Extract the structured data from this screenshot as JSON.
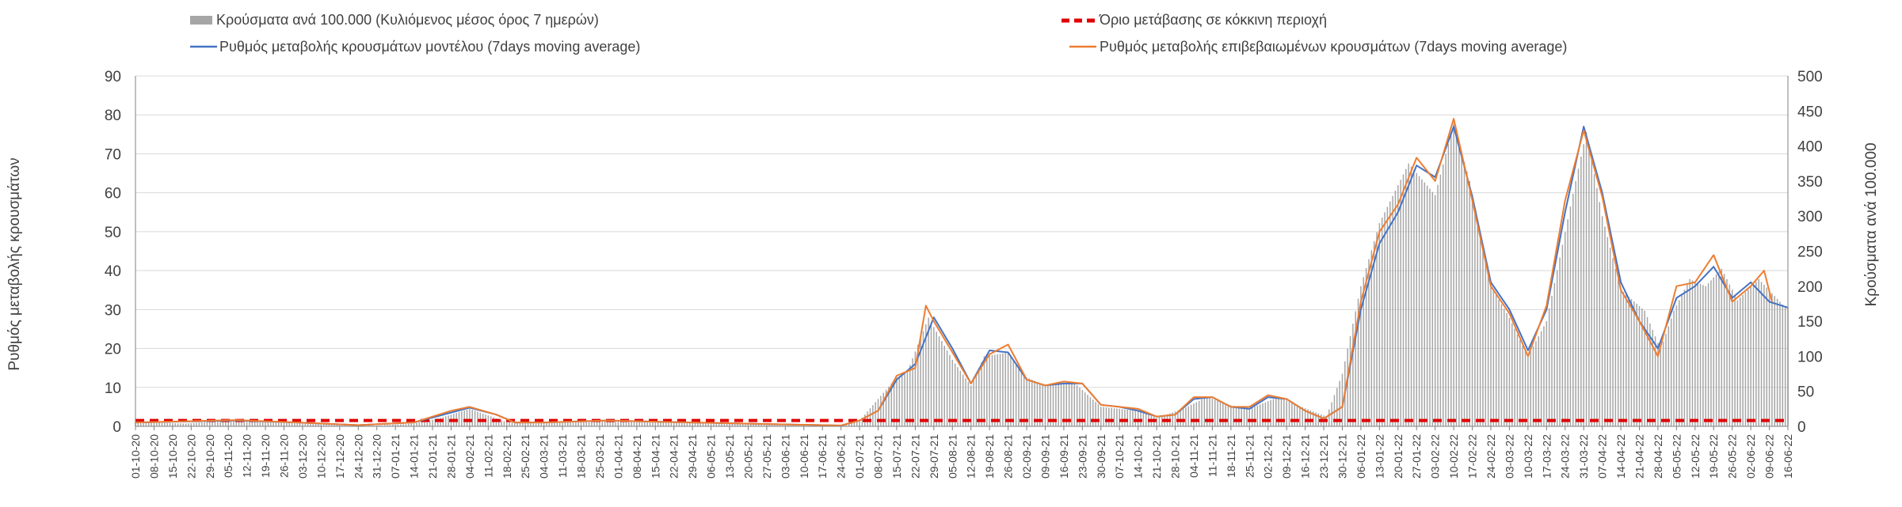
{
  "chart_data": {
    "type": "bar",
    "legend_placement": "top",
    "legend": [
      {
        "label": "Κρούσματα ανά 100.000 (Κυλιόμενος μέσος όρος 7 ημερών)",
        "kind": "bar",
        "color": "#a6a6a6"
      },
      {
        "label": "Όριο μετάβασης σε κόκκινη περιοχή",
        "kind": "dashed",
        "color": "#e00000"
      },
      {
        "label": "Ρυθμός μεταβολής κρουσμάτων μοντέλου (7days moving average)",
        "kind": "line",
        "color": "#4472c4"
      },
      {
        "label": "Ρυθμός μεταβολής επιβεβαιωμένων κρουσμάτων (7days moving average)",
        "kind": "line",
        "color": "#ed7d31"
      }
    ],
    "ylabel": "Ρυθμός μεταβολής κρουσμάτων",
    "y2label": "Κρούσματα ανά 100.000",
    "ylim": [
      0,
      90
    ],
    "y2lim": [
      0,
      500
    ],
    "yticks": [
      0,
      10,
      20,
      30,
      40,
      50,
      60,
      70,
      80,
      90
    ],
    "y2ticks": [
      0,
      50,
      100,
      150,
      200,
      250,
      300,
      350,
      400,
      450,
      500
    ],
    "grid": true,
    "x_start": "2020-10-01",
    "x_end": "2022-06-16",
    "x_ticks": [
      "01-10-20",
      "08-10-20",
      "15-10-20",
      "22-10-20",
      "29-10-20",
      "05-11-20",
      "12-11-20",
      "19-11-20",
      "26-11-20",
      "03-12-20",
      "10-12-20",
      "17-12-20",
      "24-12-20",
      "31-12-20",
      "07-01-21",
      "14-01-21",
      "21-01-21",
      "28-01-21",
      "04-02-21",
      "11-02-21",
      "18-02-21",
      "25-02-21",
      "04-03-21",
      "11-03-21",
      "18-03-21",
      "25-03-21",
      "01-04-21",
      "08-04-21",
      "15-04-21",
      "22-04-21",
      "29-04-21",
      "06-05-21",
      "13-05-21",
      "20-05-21",
      "27-05-21",
      "03-06-21",
      "10-06-21",
      "17-06-21",
      "24-06-21",
      "01-07-21",
      "08-07-21",
      "15-07-21",
      "22-07-21",
      "29-07-21",
      "05-08-21",
      "12-08-21",
      "19-08-21",
      "26-08-21",
      "02-09-21",
      "09-09-21",
      "16-09-21",
      "23-09-21",
      "30-09-21",
      "07-10-21",
      "14-10-21",
      "21-10-21",
      "28-10-21",
      "04-11-21",
      "11-11-21",
      "18-11-21",
      "25-11-21",
      "02-12-21",
      "09-12-21",
      "16-12-21",
      "23-12-21",
      "30-12-21",
      "06-01-22",
      "13-01-22",
      "20-01-22",
      "27-01-22",
      "03-02-22",
      "10-02-22",
      "17-02-22",
      "24-02-22",
      "03-03-22",
      "10-03-22",
      "17-03-22",
      "24-03-22",
      "31-03-22",
      "07-04-22",
      "14-04-22",
      "21-04-22",
      "28-04-22",
      "05-05-22",
      "12-05-22",
      "19-05-22",
      "26-05-22",
      "02-06-22",
      "09-06-22",
      "16-06-22"
    ],
    "threshold": {
      "value": 1.5
    },
    "bars": {
      "name": "Κρούσματα ανά 100.000 (Κυλιόμενος μέσος όρος 7 ημερών)",
      "points": [
        [
          "2020-10-01",
          6
        ],
        [
          "2020-10-20",
          4
        ],
        [
          "2020-11-05",
          8
        ],
        [
          "2020-11-19",
          8
        ],
        [
          "2020-12-10",
          3
        ],
        [
          "2020-12-31",
          1
        ],
        [
          "2021-01-14",
          4
        ],
        [
          "2021-01-24",
          12
        ],
        [
          "2021-02-04",
          25
        ],
        [
          "2021-02-18",
          6
        ],
        [
          "2021-03-01",
          4
        ],
        [
          "2021-03-25",
          8
        ],
        [
          "2021-04-15",
          6
        ],
        [
          "2021-04-26",
          6
        ],
        [
          "2021-05-13",
          4
        ],
        [
          "2021-06-10",
          2
        ],
        [
          "2021-06-24",
          1
        ],
        [
          "2021-07-01",
          8
        ],
        [
          "2021-07-15",
          70
        ],
        [
          "2021-07-19",
          78
        ],
        [
          "2021-07-27",
          155
        ],
        [
          "2021-08-05",
          95
        ],
        [
          "2021-08-12",
          58
        ],
        [
          "2021-08-17",
          100
        ],
        [
          "2021-08-26",
          105
        ],
        [
          "2021-09-02",
          70
        ],
        [
          "2021-09-09",
          58
        ],
        [
          "2021-09-20",
          62
        ],
        [
          "2021-09-30",
          28
        ],
        [
          "2021-10-14",
          22
        ],
        [
          "2021-10-21",
          12
        ],
        [
          "2021-10-31",
          25
        ],
        [
          "2021-11-09",
          42
        ],
        [
          "2021-11-18",
          30
        ],
        [
          "2021-11-25",
          25
        ],
        [
          "2021-12-06",
          42
        ],
        [
          "2021-12-13",
          30
        ],
        [
          "2021-12-24",
          14
        ],
        [
          "2021-12-30",
          75
        ],
        [
          "2022-01-06",
          200
        ],
        [
          "2022-01-13",
          290
        ],
        [
          "2022-01-24",
          375
        ],
        [
          "2022-02-03",
          330
        ],
        [
          "2022-02-10",
          432
        ],
        [
          "2022-02-16",
          350
        ],
        [
          "2022-02-24",
          200
        ],
        [
          "2022-03-03",
          155
        ],
        [
          "2022-03-10",
          100
        ],
        [
          "2022-03-17",
          150
        ],
        [
          "2022-03-28",
          350
        ],
        [
          "2022-04-01",
          420
        ],
        [
          "2022-04-07",
          300
        ],
        [
          "2022-04-14",
          195
        ],
        [
          "2022-04-23",
          165
        ],
        [
          "2022-04-29",
          110
        ],
        [
          "2022-05-04",
          165
        ],
        [
          "2022-05-10",
          210
        ],
        [
          "2022-05-16",
          200
        ],
        [
          "2022-05-22",
          225
        ],
        [
          "2022-05-28",
          180
        ],
        [
          "2022-06-05",
          210
        ],
        [
          "2022-06-10",
          190
        ],
        [
          "2022-06-15",
          170
        ]
      ]
    },
    "series": [
      {
        "name": "Ρυθμός μεταβολής κρουσμάτων μοντέλου (7days moving average)",
        "color": "#4472c4",
        "points": [
          [
            "2020-10-01",
            1
          ],
          [
            "2020-11-08",
            1.5
          ],
          [
            "2020-12-01",
            1
          ],
          [
            "2020-12-24",
            0.3
          ],
          [
            "2021-01-14",
            1
          ],
          [
            "2021-02-04",
            4.8
          ],
          [
            "2021-02-14",
            3
          ],
          [
            "2021-02-21",
            1
          ],
          [
            "2021-03-04",
            1
          ],
          [
            "2021-03-28",
            1.5
          ],
          [
            "2021-04-15",
            1.2
          ],
          [
            "2021-05-13",
            0.8
          ],
          [
            "2021-06-24",
            0.2
          ],
          [
            "2021-07-01",
            1.5
          ],
          [
            "2021-07-08",
            4
          ],
          [
            "2021-07-15",
            12
          ],
          [
            "2021-07-22",
            16
          ],
          [
            "2021-07-29",
            28
          ],
          [
            "2021-08-05",
            20
          ],
          [
            "2021-08-12",
            11
          ],
          [
            "2021-08-19",
            19.5
          ],
          [
            "2021-08-26",
            19
          ],
          [
            "2021-09-02",
            12
          ],
          [
            "2021-09-09",
            10.5
          ],
          [
            "2021-09-16",
            11
          ],
          [
            "2021-09-23",
            11
          ],
          [
            "2021-09-30",
            5.5
          ],
          [
            "2021-10-07",
            5
          ],
          [
            "2021-10-14",
            4
          ],
          [
            "2021-10-21",
            2.5
          ],
          [
            "2021-10-28",
            3
          ],
          [
            "2021-11-04",
            7
          ],
          [
            "2021-11-11",
            7.5
          ],
          [
            "2021-11-18",
            5
          ],
          [
            "2021-11-25",
            4.5
          ],
          [
            "2021-12-02",
            7.5
          ],
          [
            "2021-12-09",
            7
          ],
          [
            "2021-12-16",
            4
          ],
          [
            "2021-12-23",
            2
          ],
          [
            "2021-12-30",
            5
          ],
          [
            "2022-01-06",
            30
          ],
          [
            "2022-01-13",
            47
          ],
          [
            "2022-01-20",
            55
          ],
          [
            "2022-01-27",
            67
          ],
          [
            "2022-02-03",
            64
          ],
          [
            "2022-02-10",
            77
          ],
          [
            "2022-02-17",
            59
          ],
          [
            "2022-02-24",
            37
          ],
          [
            "2022-03-03",
            30
          ],
          [
            "2022-03-10",
            19.5
          ],
          [
            "2022-03-17",
            30
          ],
          [
            "2022-03-24",
            55
          ],
          [
            "2022-03-31",
            77
          ],
          [
            "2022-04-07",
            60
          ],
          [
            "2022-04-14",
            37
          ],
          [
            "2022-04-21",
            27
          ],
          [
            "2022-04-28",
            20
          ],
          [
            "2022-05-05",
            33
          ],
          [
            "2022-05-12",
            36
          ],
          [
            "2022-05-19",
            41
          ],
          [
            "2022-05-26",
            33
          ],
          [
            "2022-06-02",
            37
          ],
          [
            "2022-06-09",
            32
          ],
          [
            "2022-06-16",
            30.5
          ]
        ]
      },
      {
        "name": "Ρυθμός μεταβολής επιβεβαιωμένων κρουσμάτων (7days moving average)",
        "color": "#ed7d31",
        "points": [
          [
            "2020-10-01",
            1
          ],
          [
            "2020-11-08",
            1.6
          ],
          [
            "2020-12-01",
            1
          ],
          [
            "2020-12-24",
            0.3
          ],
          [
            "2021-01-14",
            1
          ],
          [
            "2021-01-28",
            4
          ],
          [
            "2021-02-04",
            5
          ],
          [
            "2021-02-14",
            3
          ],
          [
            "2021-02-21",
            1
          ],
          [
            "2021-03-04",
            1
          ],
          [
            "2021-03-28",
            1.5
          ],
          [
            "2021-04-15",
            1.2
          ],
          [
            "2021-05-13",
            0.8
          ],
          [
            "2021-06-24",
            0.2
          ],
          [
            "2021-07-01",
            1.5
          ],
          [
            "2021-07-08",
            4
          ],
          [
            "2021-07-15",
            13
          ],
          [
            "2021-07-22",
            15
          ],
          [
            "2021-07-26",
            31
          ],
          [
            "2021-07-29",
            27
          ],
          [
            "2021-08-05",
            19
          ],
          [
            "2021-08-12",
            11
          ],
          [
            "2021-08-19",
            18.5
          ],
          [
            "2021-08-26",
            21
          ],
          [
            "2021-09-02",
            12
          ],
          [
            "2021-09-09",
            10.5
          ],
          [
            "2021-09-16",
            11.5
          ],
          [
            "2021-09-23",
            11
          ],
          [
            "2021-09-30",
            5.5
          ],
          [
            "2021-10-07",
            5
          ],
          [
            "2021-10-14",
            4.5
          ],
          [
            "2021-10-21",
            2.5
          ],
          [
            "2021-10-28",
            3
          ],
          [
            "2021-11-04",
            7.5
          ],
          [
            "2021-11-11",
            7.5
          ],
          [
            "2021-11-18",
            5
          ],
          [
            "2021-11-25",
            5
          ],
          [
            "2021-12-02",
            8
          ],
          [
            "2021-12-09",
            7
          ],
          [
            "2021-12-16",
            4
          ],
          [
            "2021-12-23",
            2
          ],
          [
            "2021-12-30",
            5
          ],
          [
            "2022-01-06",
            32
          ],
          [
            "2022-01-13",
            50
          ],
          [
            "2022-01-20",
            57
          ],
          [
            "2022-01-27",
            69
          ],
          [
            "2022-02-03",
            63
          ],
          [
            "2022-02-10",
            79
          ],
          [
            "2022-02-17",
            58
          ],
          [
            "2022-02-24",
            36
          ],
          [
            "2022-03-03",
            29
          ],
          [
            "2022-03-10",
            18
          ],
          [
            "2022-03-17",
            31
          ],
          [
            "2022-03-24",
            58
          ],
          [
            "2022-03-31",
            76
          ],
          [
            "2022-04-07",
            59
          ],
          [
            "2022-04-14",
            35
          ],
          [
            "2022-04-21",
            27
          ],
          [
            "2022-04-28",
            18
          ],
          [
            "2022-05-05",
            36
          ],
          [
            "2022-05-12",
            37
          ],
          [
            "2022-05-19",
            44
          ],
          [
            "2022-05-26",
            32
          ],
          [
            "2022-06-02",
            36
          ],
          [
            "2022-06-07",
            40
          ],
          [
            "2022-06-10",
            32
          ]
        ]
      }
    ]
  }
}
